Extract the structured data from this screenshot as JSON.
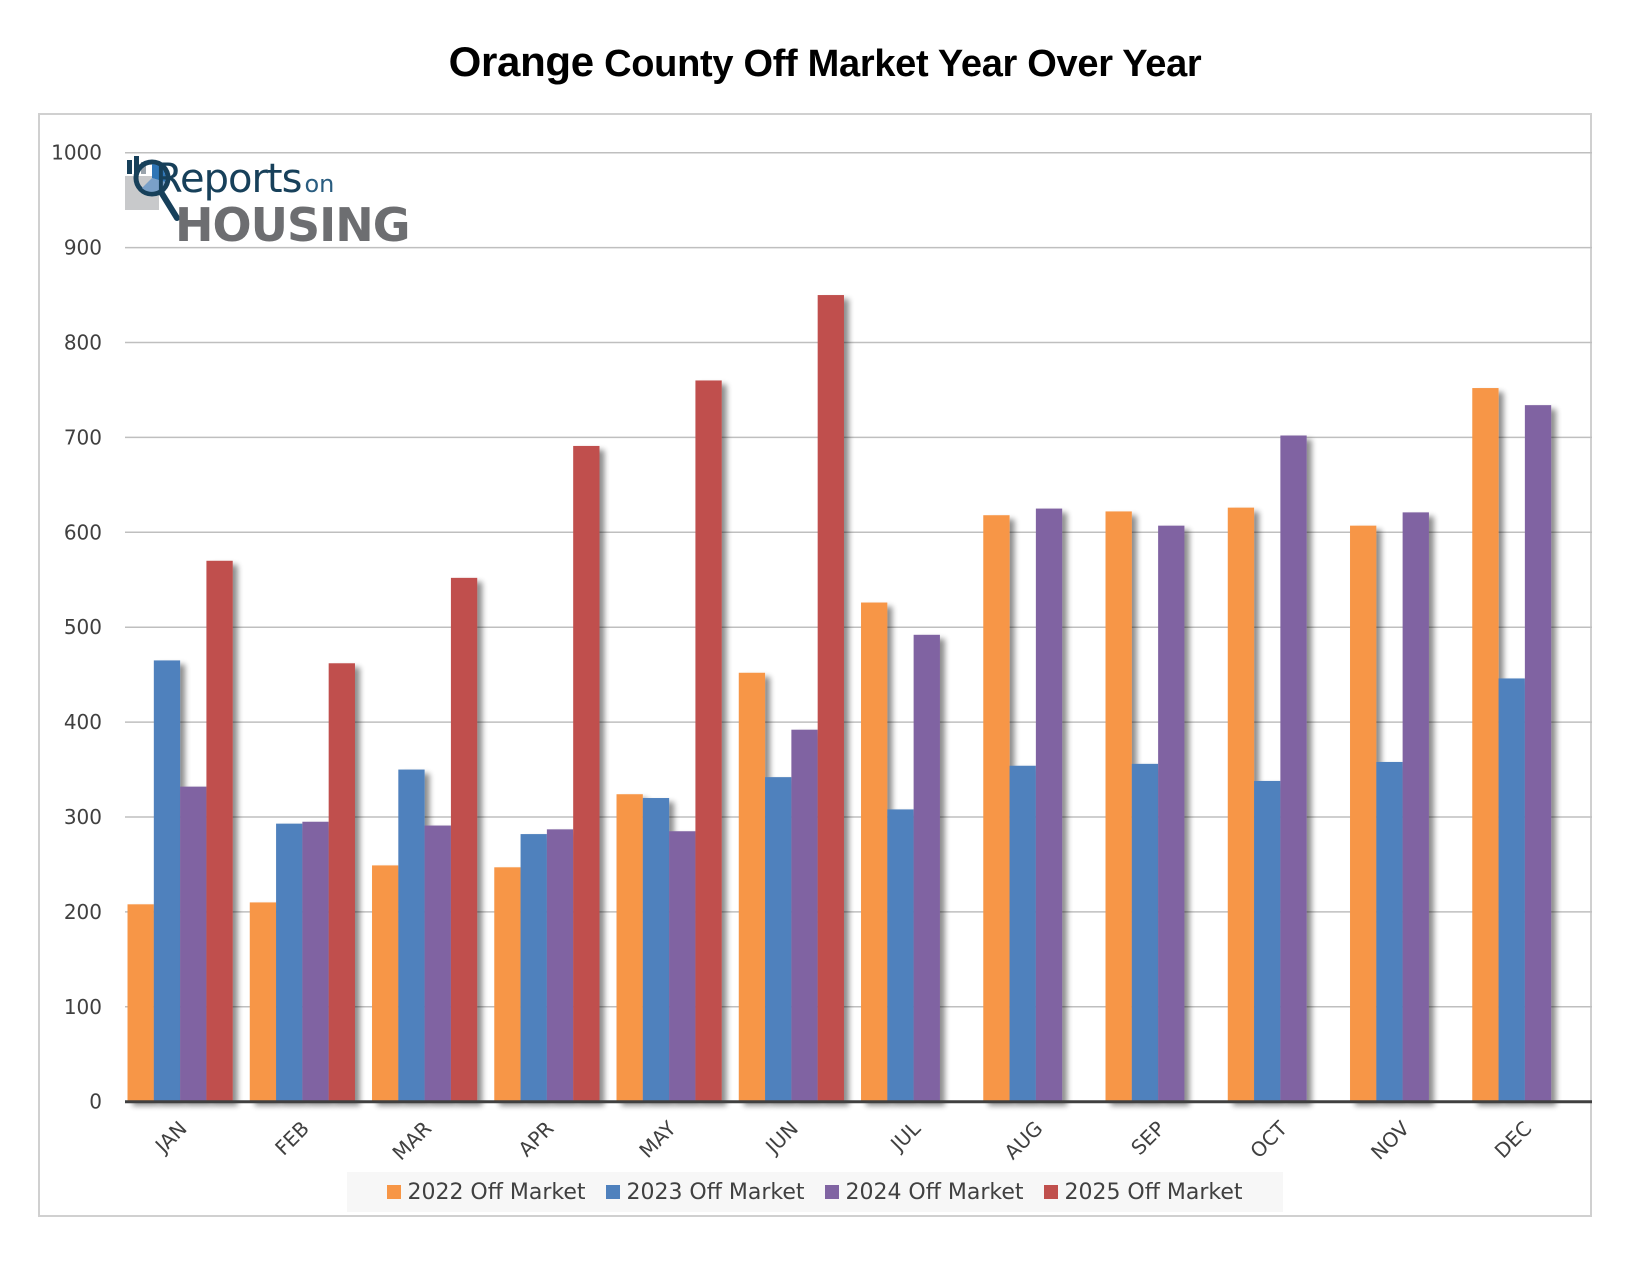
{
  "chart_data": {
    "type": "bar",
    "title": "Orange County Off Market Year Over Year",
    "title_first_word": "Orange",
    "title_rest": " County Off Market Year Over Year",
    "xlabel": "",
    "ylabel": "",
    "ylim": [
      0,
      1000
    ],
    "yticks": [
      0,
      100,
      200,
      300,
      400,
      500,
      600,
      700,
      800,
      900,
      1000
    ],
    "ytick_labels": [
      "0",
      "100",
      "200",
      "300",
      "400",
      "500",
      "600",
      "700",
      "800",
      "900",
      "1000"
    ],
    "grid": true,
    "legend_position": "bottom",
    "categories": [
      "JAN",
      "FEB",
      "MAR",
      "APR",
      "MAY",
      "JUN",
      "JUL",
      "AUG",
      "SEP",
      "OCT",
      "NOV",
      "DEC"
    ],
    "series": [
      {
        "name": "2022 Off Market",
        "color": "#f79646",
        "values": [
          208,
          210,
          249,
          247,
          324,
          452,
          526,
          618,
          622,
          626,
          607,
          752
        ]
      },
      {
        "name": "2023 Off Market",
        "color": "#4f81bd",
        "values": [
          465,
          293,
          350,
          282,
          320,
          342,
          308,
          354,
          356,
          338,
          358,
          446
        ]
      },
      {
        "name": "2024 Off Market",
        "color": "#8064a2",
        "values": [
          332,
          295,
          291,
          287,
          285,
          392,
          492,
          625,
          607,
          702,
          621,
          734
        ]
      },
      {
        "name": "2025 Off Market",
        "color": "#c0504d",
        "values": [
          570,
          462,
          552,
          691,
          760,
          850,
          null,
          null,
          null,
          null,
          null,
          null
        ]
      }
    ]
  },
  "logo": {
    "line1": "Reports",
    "line1_suffix": "on",
    "line2": "HOUSING",
    "colors": {
      "primary": "#17405a",
      "secondary": "#6d6e71",
      "accent": "#2e75b6"
    }
  }
}
